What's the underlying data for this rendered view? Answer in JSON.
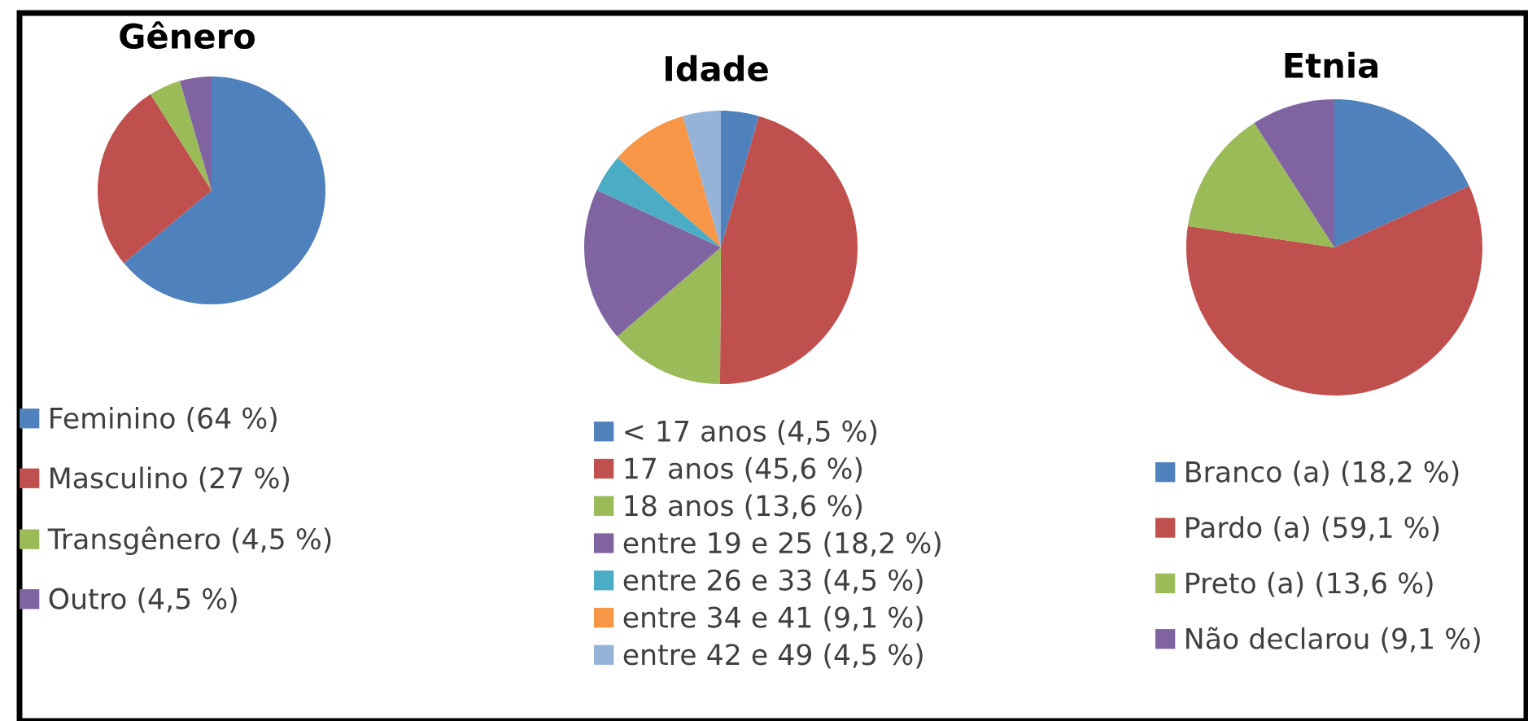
{
  "chart_data": [
    {
      "type": "pie",
      "title": "Gênero",
      "legend": "bottom",
      "categories": [
        "Feminino (64 %)",
        "Masculino (27 %)",
        "Transgênero (4,5 %)",
        "Outro (4,5 %)"
      ],
      "values": [
        64,
        27,
        4.5,
        4.5
      ],
      "colors": [
        "#4f81bd",
        "#c0504d",
        "#9bbb59",
        "#8064a2"
      ]
    },
    {
      "type": "pie",
      "title": "Idade",
      "legend": "bottom",
      "categories": [
        "< 17 anos (4,5 %)",
        "17 anos (45,6 %)",
        "18 anos (13,6 %)",
        "entre 19 e 25 (18,2 %)",
        "entre 26 e 33 (4,5 %)",
        "entre 34 e 41 (9,1 %)",
        "entre 42 e 49 (4,5 %)"
      ],
      "values": [
        4.5,
        45.6,
        13.6,
        18.2,
        4.5,
        9.1,
        4.5
      ],
      "colors": [
        "#4f81bd",
        "#c0504d",
        "#9bbb59",
        "#8064a2",
        "#4bacc6",
        "#f79646",
        "#95b3d7"
      ]
    },
    {
      "type": "pie",
      "title": "Etnia",
      "legend": "bottom",
      "categories": [
        "Branco (a) (18,2 %)",
        "Pardo (a) (59,1 %)",
        "Preto (a) (13,6 %)",
        "Não declarou (9,1 %)"
      ],
      "values": [
        18.2,
        59.1,
        13.6,
        9.1
      ],
      "colors": [
        "#4f81bd",
        "#c0504d",
        "#9bbb59",
        "#8064a2"
      ]
    }
  ]
}
